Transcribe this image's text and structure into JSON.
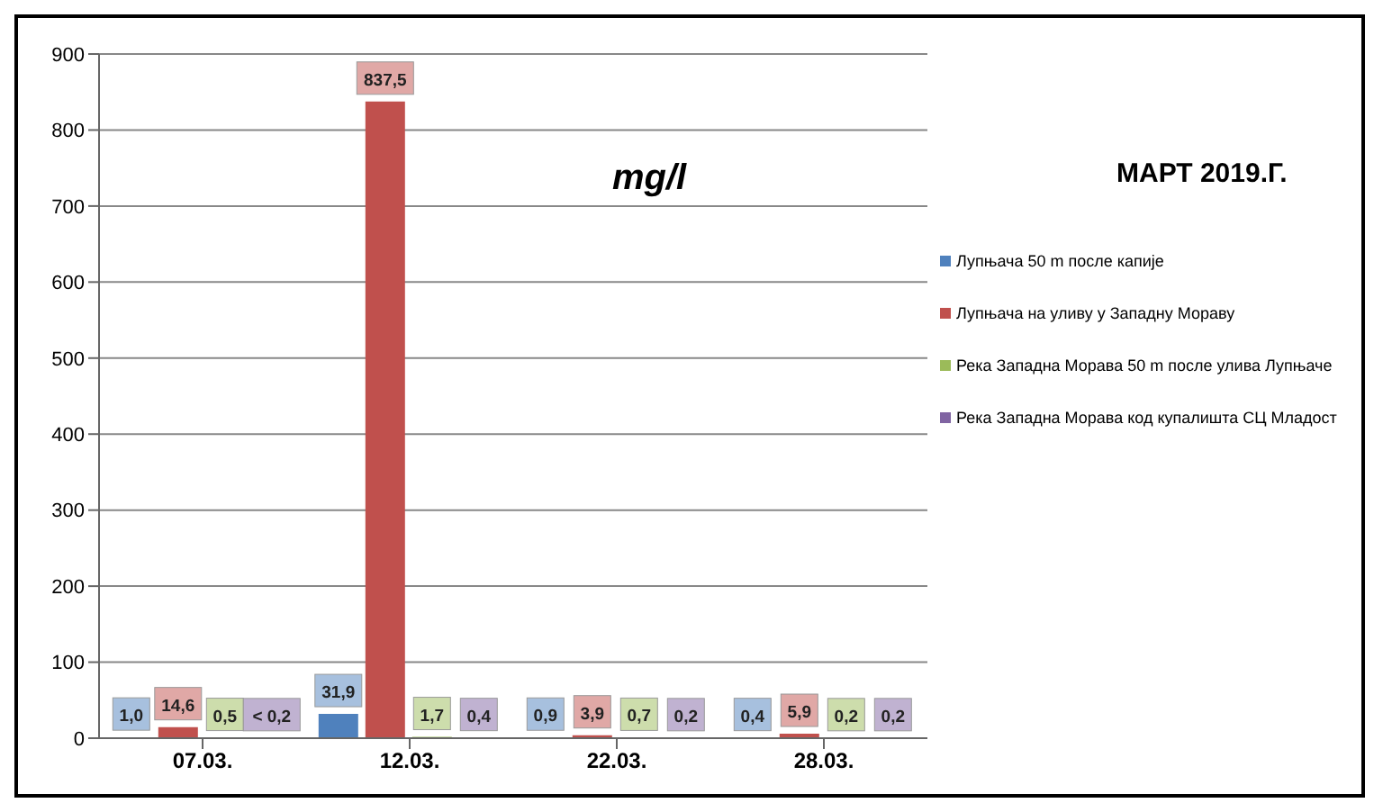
{
  "chart_data": {
    "type": "bar",
    "title": "МАРТ 2019.Г.",
    "annotations": [
      "mg/l"
    ],
    "categories": [
      "07.03.",
      "12.03.",
      "22.03.",
      "28.03."
    ],
    "series": [
      {
        "name": "Лупњача 50 m после капије",
        "color": "#4f81bd",
        "values": [
          1.0,
          31.9,
          0.9,
          0.4
        ],
        "value_labels": [
          "1,0",
          "31,9",
          "0,9",
          "0,4"
        ]
      },
      {
        "name": "Лупњача на уливу у Западну Мораву",
        "color": "#c0504d",
        "values": [
          14.6,
          837.5,
          3.9,
          5.9
        ],
        "value_labels": [
          "14,6",
          "837,5",
          "3,9",
          "5,9"
        ]
      },
      {
        "name": "Река Западна Морава 50 m после улива Лупњаче",
        "color": "#9bbb59",
        "values": [
          0.5,
          1.7,
          0.7,
          0.2
        ],
        "value_labels": [
          "0,5",
          "1,7",
          "0,7",
          "0,2"
        ]
      },
      {
        "name": "Река Западна Морава код купалишта СЦ Младост",
        "color": "#8064a2",
        "values": [
          0.2,
          0.4,
          0.2,
          0.2
        ],
        "value_labels": [
          "< 0,2",
          "0,4",
          "0,2",
          "0,2"
        ]
      }
    ],
    "ylim": [
      0,
      900
    ],
    "yticks": [
      0,
      100,
      200,
      300,
      400,
      500,
      600,
      700,
      800,
      900
    ],
    "grid": "y",
    "legend": "right"
  }
}
